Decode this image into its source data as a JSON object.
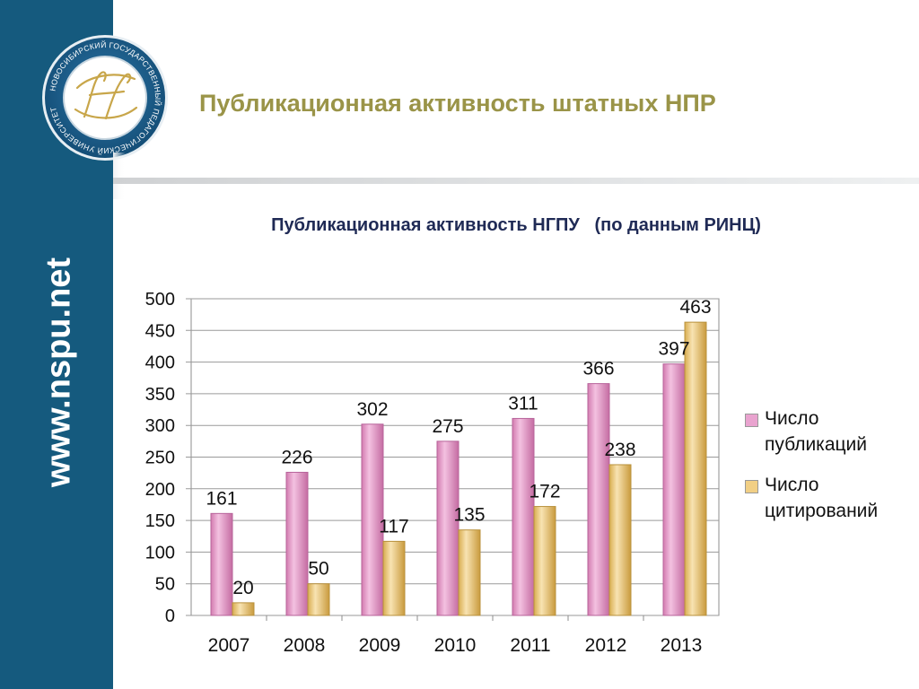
{
  "sidebar": {
    "site_url": "www.nspu.net"
  },
  "logo": {
    "seal_text": "НОВОСИБИРСКИЙ ГОСУДАРСТВЕННЫЙ ПЕДАГОГИЧЕСКИЙ УНИВЕРСИТЕТ",
    "monogram": "НГ",
    "colors": {
      "ring": "#1c5a86",
      "inner": "#ffffff",
      "gold": "#c8a64a"
    }
  },
  "slide": {
    "title": "Публикационная активность штатных НПР"
  },
  "chart_data": {
    "type": "bar",
    "title": "Публикационная активность НГПУ   (по данным РИНЦ)",
    "categories": [
      "2007",
      "2008",
      "2009",
      "2010",
      "2011",
      "2012",
      "2013"
    ],
    "series": [
      {
        "name": "Число публикаций",
        "values": [
          161,
          226,
          302,
          275,
          311,
          366,
          397
        ],
        "color": "#e9a3cf"
      },
      {
        "name": "Число цитирований",
        "values": [
          20,
          50,
          117,
          135,
          172,
          238,
          463
        ],
        "color": "#f1cf85"
      }
    ],
    "ylim": [
      0,
      500
    ],
    "yticks": [
      "0",
      "50",
      "100",
      "150",
      "200",
      "250",
      "300",
      "350",
      "400",
      "450",
      "500"
    ],
    "grid": true,
    "legend": "right",
    "data_labels": true
  },
  "colors": {
    "sidebar": "#155a7e",
    "title": "#9a9448",
    "chart_title": "#1f2a55"
  }
}
